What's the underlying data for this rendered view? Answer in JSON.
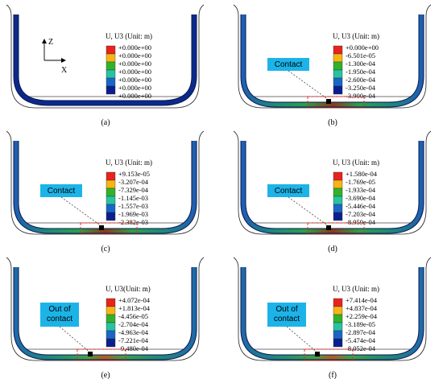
{
  "figure": {
    "axes_triad": {
      "z_label": "Z",
      "x_label": "X"
    },
    "legend_colors": [
      "#e8231c",
      "#f7b514",
      "#2fb32a",
      "#27c3a2",
      "#1966c8",
      "#0a1f8f"
    ],
    "panels": [
      {
        "id": "a",
        "label": "(a)",
        "title": "U, U3 (Unit: m)",
        "legend_values": [
          "+0.000e+00",
          "+0.000e+00",
          "+0.000e+00",
          "+0.000e+00",
          "+0.000e+00",
          "+0.000e+00",
          "+0.000e+00"
        ],
        "callout": "",
        "contact_state": "none"
      },
      {
        "id": "b",
        "label": "(b)",
        "title": "U, U3 (Unit: m)",
        "legend_values": [
          "+0.000e+00",
          "-6.501e-05",
          "-1.300e-04",
          "-1.950e-04",
          "-2.600e-04",
          "-3.250e-04",
          "-3.900e-04"
        ],
        "callout": "Contact",
        "contact_state": "contact"
      },
      {
        "id": "c",
        "label": "(c)",
        "title": "U, U3 (Unit: m)",
        "legend_values": [
          "+9.153e-05",
          "-3.207e-04",
          "-7.329e-04",
          "-1.145e-03",
          "-1.557e-03",
          "-1.969e-03",
          "-2.382e-03"
        ],
        "callout": "Contact",
        "contact_state": "contact"
      },
      {
        "id": "d",
        "label": "(d)",
        "title": "U, U3 (Unit: m)",
        "legend_values": [
          "+1.580e-04",
          "-1.769e-05",
          "-1.933e-04",
          "-3.690e-04",
          "-5.446e-04",
          "-7.203e-04",
          "-8.959e-04"
        ],
        "callout": "Contact",
        "contact_state": "contact"
      },
      {
        "id": "e",
        "label": "(e)",
        "title": "U, U3(Unit: m)",
        "legend_values": [
          "+4.072e-04",
          "+1.813e-04",
          "-4.456e-05",
          "-2.704e-04",
          "-4.963e-04",
          "-7.221e-04",
          "-9.480e-04"
        ],
        "callout": "Out of\ncontact",
        "contact_state": "out"
      },
      {
        "id": "f",
        "label": "(f)",
        "title": "U, U3 (Unit: m)",
        "legend_values": [
          "+7.414e-04",
          "+4.837e-04",
          "+2.259e-04",
          "-3.189e-05",
          "-2.897e-04",
          "-5.474e-04",
          "-8.052e-04"
        ],
        "callout": "Out of\ncontact",
        "contact_state": "out"
      }
    ]
  }
}
